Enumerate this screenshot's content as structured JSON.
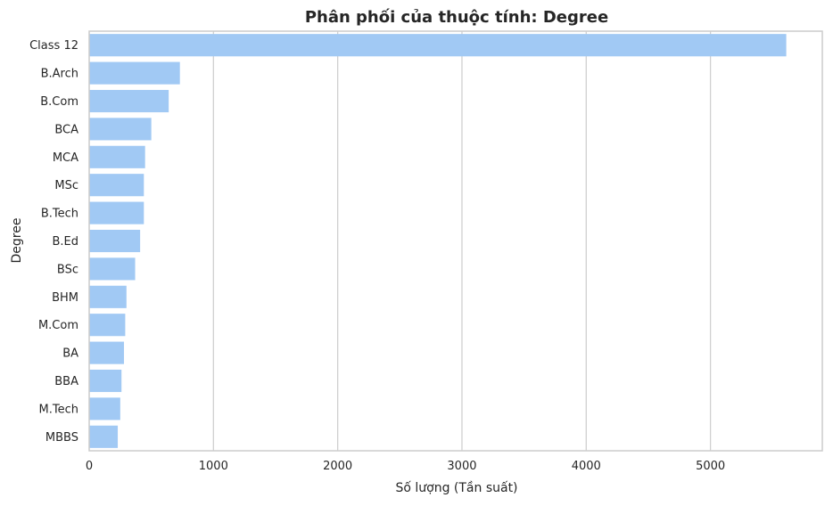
{
  "chart_data": {
    "type": "bar",
    "orientation": "horizontal",
    "title": "Phân phối của thuộc tính: Degree",
    "xlabel": "Số lượng (Tần suất)",
    "ylabel": "Degree",
    "categories": [
      "Class 12",
      "B.Arch",
      "B.Com",
      "BCA",
      "MCA",
      "MSc",
      "B.Tech",
      "B.Ed",
      "BSc",
      "BHM",
      "M.Com",
      "BA",
      "BBA",
      "M.Tech",
      "MBBS"
    ],
    "values": [
      5610,
      730,
      640,
      500,
      450,
      440,
      440,
      410,
      370,
      300,
      290,
      280,
      260,
      250,
      230
    ],
    "xlim": [
      0,
      5900
    ],
    "xticks": [
      0,
      1000,
      2000,
      3000,
      4000,
      5000
    ],
    "grid": true,
    "bar_color": "#a1c9f4",
    "grid_color": "#d0d0d0",
    "spine_color": "#cccccc"
  }
}
